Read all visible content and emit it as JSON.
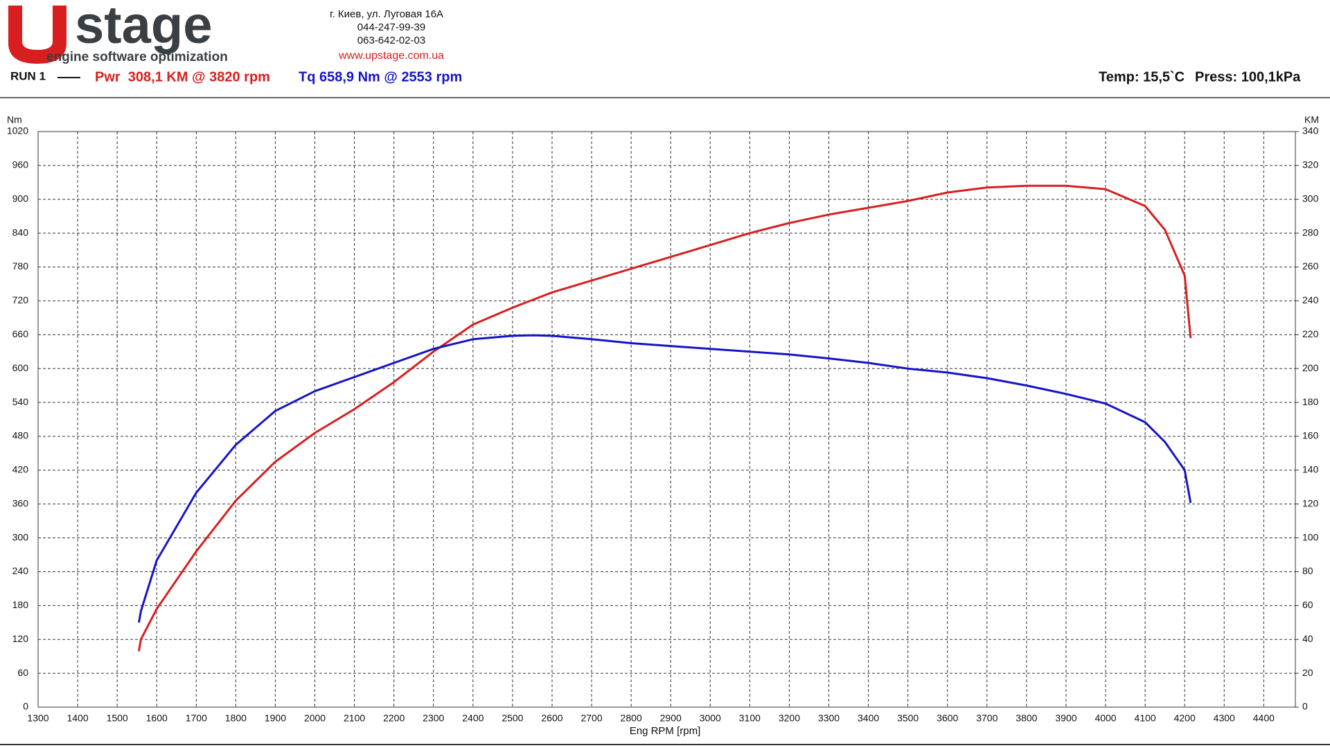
{
  "header": {
    "logo_letter": "U",
    "logo_word": "stage",
    "logo_tagline": "engine software optimization",
    "address": "г. Киев, ул. Луговая 16А",
    "phone_1": "044-247-99-39",
    "phone_2": "063-642-02-03",
    "website": "www.upstage.com.ua",
    "run": "RUN 1",
    "temp": "Temp: 15,5`C",
    "press": "Press: 100,1kPa"
  },
  "chart_data": {
    "type": "line",
    "x_label": "Eng RPM [rpm]",
    "y_label": "Nm",
    "y2_label": "KM",
    "xlim": [
      1300,
      4480
    ],
    "xticks": [
      1300,
      1400,
      1500,
      1600,
      1700,
      1800,
      1900,
      2000,
      2100,
      2200,
      2300,
      2400,
      2500,
      2600,
      2700,
      2800,
      2900,
      3000,
      3100,
      3200,
      3300,
      3400,
      3500,
      3600,
      3700,
      3800,
      3900,
      4000,
      4100,
      4200,
      4300,
      4400
    ],
    "ylim": [
      0,
      1020
    ],
    "yticks": [
      0,
      60,
      120,
      180,
      240,
      300,
      360,
      420,
      480,
      540,
      600,
      660,
      720,
      780,
      840,
      900,
      960,
      1020
    ],
    "y2lim": [
      0,
      340
    ],
    "y2ticks": [
      0,
      20,
      40,
      60,
      80,
      100,
      120,
      140,
      160,
      180,
      200,
      220,
      240,
      260,
      280,
      300,
      320,
      340
    ],
    "grid": true,
    "series": [
      {
        "name": "Pwr  308,1 KM @ 3820 rpm",
        "color": "#d81e1e",
        "axis": "y2",
        "x": [
          1555,
          1560,
          1600,
          1700,
          1800,
          1900,
          2000,
          2100,
          2200,
          2300,
          2400,
          2500,
          2600,
          2700,
          2800,
          2900,
          3000,
          3100,
          3200,
          3300,
          3400,
          3500,
          3600,
          3700,
          3800,
          3900,
          4000,
          4100,
          4150,
          4200,
          4215
        ],
        "values": [
          33,
          40,
          58,
          92,
          122,
          145,
          162,
          176,
          192,
          210,
          226,
          236,
          245,
          252,
          259,
          266,
          273,
          280,
          286,
          291,
          295,
          299,
          304,
          307,
          308,
          308,
          306,
          296,
          282,
          255,
          218
        ]
      },
      {
        "name": "Tq 658,9 Nm @ 2553 rpm",
        "color": "#1414c8",
        "axis": "y",
        "x": [
          1555,
          1560,
          1600,
          1650,
          1700,
          1800,
          1900,
          2000,
          2100,
          2200,
          2300,
          2400,
          2500,
          2553,
          2600,
          2700,
          2800,
          2900,
          3000,
          3100,
          3200,
          3300,
          3400,
          3500,
          3600,
          3700,
          3800,
          3900,
          4000,
          4100,
          4150,
          4200,
          4215
        ],
        "values": [
          150,
          170,
          260,
          320,
          380,
          465,
          525,
          560,
          585,
          610,
          635,
          652,
          658,
          659,
          658,
          652,
          645,
          640,
          635,
          630,
          625,
          618,
          610,
          600,
          593,
          583,
          570,
          555,
          538,
          505,
          470,
          420,
          362
        ]
      }
    ]
  }
}
